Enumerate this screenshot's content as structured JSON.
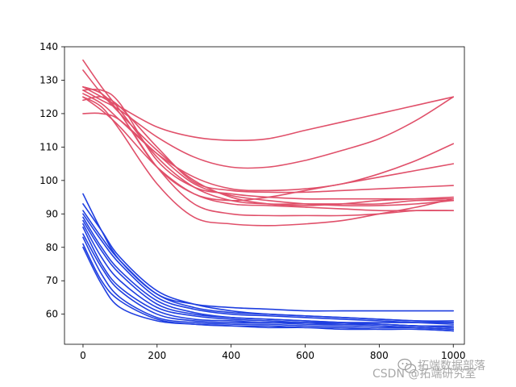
{
  "chart_data": {
    "type": "line",
    "title": "",
    "xlabel": "",
    "ylabel": "",
    "xlim": [
      -50,
      1030
    ],
    "ylim": [
      51,
      140
    ],
    "xticks": [
      0,
      200,
      400,
      600,
      800,
      1000
    ],
    "yticks": [
      60,
      70,
      80,
      90,
      100,
      110,
      120,
      130,
      140
    ],
    "grid": false,
    "legend": "none",
    "colors": {
      "red_group": "#e0506a",
      "blue_group": "#1f3fe0"
    },
    "series": [
      {
        "group": "red",
        "x": [
          0,
          50,
          100,
          200,
          300,
          400,
          500,
          600,
          700,
          800,
          900,
          1000
        ],
        "y": [
          136,
          128,
          121,
          107,
          98,
          94,
          93,
          93,
          93,
          93,
          94,
          94
        ]
      },
      {
        "group": "red",
        "x": [
          0,
          50,
          100,
          200,
          300,
          400,
          500,
          600,
          700,
          800,
          900,
          1000
        ],
        "y": [
          133,
          126,
          120,
          109,
          100,
          95,
          93,
          92.5,
          93,
          94,
          94.5,
          95
        ]
      },
      {
        "group": "red",
        "x": [
          0,
          50,
          100,
          200,
          300,
          400,
          500,
          600,
          700,
          800,
          900,
          1000
        ],
        "y": [
          128,
          125,
          122,
          116,
          113,
          112,
          112.5,
          115,
          117.5,
          120,
          122.5,
          125
        ]
      },
      {
        "group": "red",
        "x": [
          0,
          50,
          100,
          200,
          300,
          400,
          500,
          600,
          700,
          800,
          900,
          1000
        ],
        "y": [
          127,
          124,
          121,
          113,
          107,
          104,
          104,
          106,
          109,
          112.5,
          118,
          125
        ]
      },
      {
        "group": "red",
        "x": [
          0,
          50,
          100,
          200,
          300,
          400,
          500,
          600,
          700,
          800,
          900,
          1000
        ],
        "y": [
          126,
          123,
          118,
          108,
          101,
          97.5,
          97,
          97.5,
          99,
          102,
          106,
          111
        ]
      },
      {
        "group": "red",
        "x": [
          0,
          50,
          100,
          200,
          300,
          400,
          500,
          600,
          700,
          800,
          900,
          1000
        ],
        "y": [
          128,
          126,
          120,
          104,
          96,
          94,
          95,
          97,
          99,
          101,
          103,
          105
        ]
      },
      {
        "group": "red",
        "x": [
          0,
          50,
          100,
          200,
          300,
          400,
          500,
          600,
          700,
          800,
          900,
          1000
        ],
        "y": [
          124,
          125,
          122,
          110,
          99.5,
          97,
          96.5,
          96.5,
          97,
          97.5,
          98,
          98.5
        ]
      },
      {
        "group": "red",
        "x": [
          0,
          50,
          100,
          200,
          300,
          400,
          500,
          600,
          700,
          800,
          900,
          1000
        ],
        "y": [
          127,
          127,
          123,
          106,
          98,
          96,
          95,
          94.5,
          94.5,
          94.5,
          94.5,
          94.5
        ]
      },
      {
        "group": "red",
        "x": [
          0,
          50,
          100,
          200,
          300,
          400,
          500,
          600,
          700,
          800,
          900,
          1000
        ],
        "y": [
          120,
          120,
          118,
          108,
          99,
          95.5,
          94,
          93,
          92.5,
          92.5,
          93,
          94
        ]
      },
      {
        "group": "red",
        "x": [
          0,
          50,
          100,
          200,
          300,
          400,
          500,
          600,
          700,
          800,
          900,
          1000
        ],
        "y": [
          125,
          121,
          116,
          104,
          96,
          93,
          92.5,
          92,
          91.5,
          91,
          91,
          91
        ]
      },
      {
        "group": "red",
        "x": [
          0,
          50,
          100,
          200,
          300,
          400,
          500,
          600,
          700,
          800,
          900,
          1000
        ],
        "y": [
          128,
          126,
          120,
          104,
          93,
          90,
          89.5,
          89.5,
          89.5,
          90,
          91,
          91
        ]
      },
      {
        "group": "red",
        "x": [
          0,
          50,
          100,
          200,
          300,
          400,
          500,
          600,
          700,
          800,
          900,
          1000
        ],
        "y": [
          125,
          122,
          115,
          99,
          89,
          87,
          86.5,
          87,
          88,
          90,
          92,
          94.5
        ]
      },
      {
        "group": "blue",
        "x": [
          0,
          50,
          100,
          200,
          300,
          400,
          500,
          600,
          700,
          800,
          900,
          1000
        ],
        "y": [
          96,
          85,
          76,
          66,
          63,
          62,
          61.5,
          61,
          61,
          61,
          61,
          61
        ]
      },
      {
        "group": "blue",
        "x": [
          0,
          50,
          100,
          200,
          300,
          400,
          500,
          600,
          700,
          800,
          900,
          1000
        ],
        "y": [
          93,
          85,
          77,
          67,
          63,
          61,
          60,
          59.5,
          59,
          58.5,
          58,
          58
        ]
      },
      {
        "group": "blue",
        "x": [
          0,
          50,
          100,
          200,
          300,
          400,
          500,
          600,
          700,
          800,
          900,
          1000
        ],
        "y": [
          91,
          83,
          76,
          66,
          62,
          60.5,
          60,
          59.5,
          59,
          58.5,
          58,
          57.5
        ]
      },
      {
        "group": "blue",
        "x": [
          0,
          50,
          100,
          200,
          300,
          400,
          500,
          600,
          700,
          800,
          900,
          1000
        ],
        "y": [
          90,
          82,
          75,
          65,
          61.5,
          60,
          59.5,
          59,
          58.5,
          58,
          57.5,
          57
        ]
      },
      {
        "group": "blue",
        "x": [
          0,
          50,
          100,
          200,
          300,
          400,
          500,
          600,
          700,
          800,
          900,
          1000
        ],
        "y": [
          89,
          80,
          73,
          64,
          60.5,
          59,
          58.5,
          58,
          57.5,
          57,
          56.5,
          56
        ]
      },
      {
        "group": "blue",
        "x": [
          0,
          50,
          100,
          200,
          300,
          400,
          500,
          600,
          700,
          800,
          900,
          1000
        ],
        "y": [
          88,
          79,
          72,
          63,
          60,
          59,
          58.5,
          58,
          57.5,
          57,
          56.5,
          56
        ]
      },
      {
        "group": "blue",
        "x": [
          0,
          50,
          100,
          200,
          300,
          400,
          500,
          600,
          700,
          800,
          900,
          1000
        ],
        "y": [
          87,
          77,
          70,
          62,
          59.5,
          58.5,
          58,
          57.5,
          57,
          56.5,
          56,
          55.5
        ]
      },
      {
        "group": "blue",
        "x": [
          0,
          50,
          100,
          200,
          300,
          400,
          500,
          600,
          700,
          800,
          900,
          1000
        ],
        "y": [
          86,
          75,
          68,
          61,
          58.5,
          58,
          57.5,
          57.5,
          57.5,
          57.5,
          57.5,
          57.5
        ]
      },
      {
        "group": "blue",
        "x": [
          0,
          50,
          100,
          200,
          300,
          400,
          500,
          600,
          700,
          800,
          900,
          1000
        ],
        "y": [
          84,
          74,
          67,
          60,
          58,
          57.5,
          57.5,
          57,
          57,
          57,
          56.5,
          56.5
        ]
      },
      {
        "group": "blue",
        "x": [
          0,
          50,
          100,
          200,
          300,
          400,
          500,
          600,
          700,
          800,
          900,
          1000
        ],
        "y": [
          83,
          72,
          65,
          59,
          57.5,
          57,
          57,
          56.5,
          56.5,
          56,
          56,
          55.5
        ]
      },
      {
        "group": "blue",
        "x": [
          0,
          50,
          100,
          200,
          300,
          400,
          500,
          600,
          700,
          800,
          900,
          1000
        ],
        "y": [
          81,
          70,
          64,
          58.5,
          57,
          56.5,
          56.5,
          56,
          56,
          55.5,
          55.5,
          55
        ]
      },
      {
        "group": "blue",
        "x": [
          0,
          50,
          100,
          200,
          300,
          400,
          500,
          600,
          700,
          800,
          900,
          1000
        ],
        "y": [
          80,
          69,
          62,
          58,
          57,
          56.5,
          56,
          56,
          55.5,
          55.5,
          55.5,
          55
        ]
      }
    ]
  },
  "watermark": {
    "line1": "拓端数据部落",
    "line2": "CSDN @拓端研究室"
  }
}
